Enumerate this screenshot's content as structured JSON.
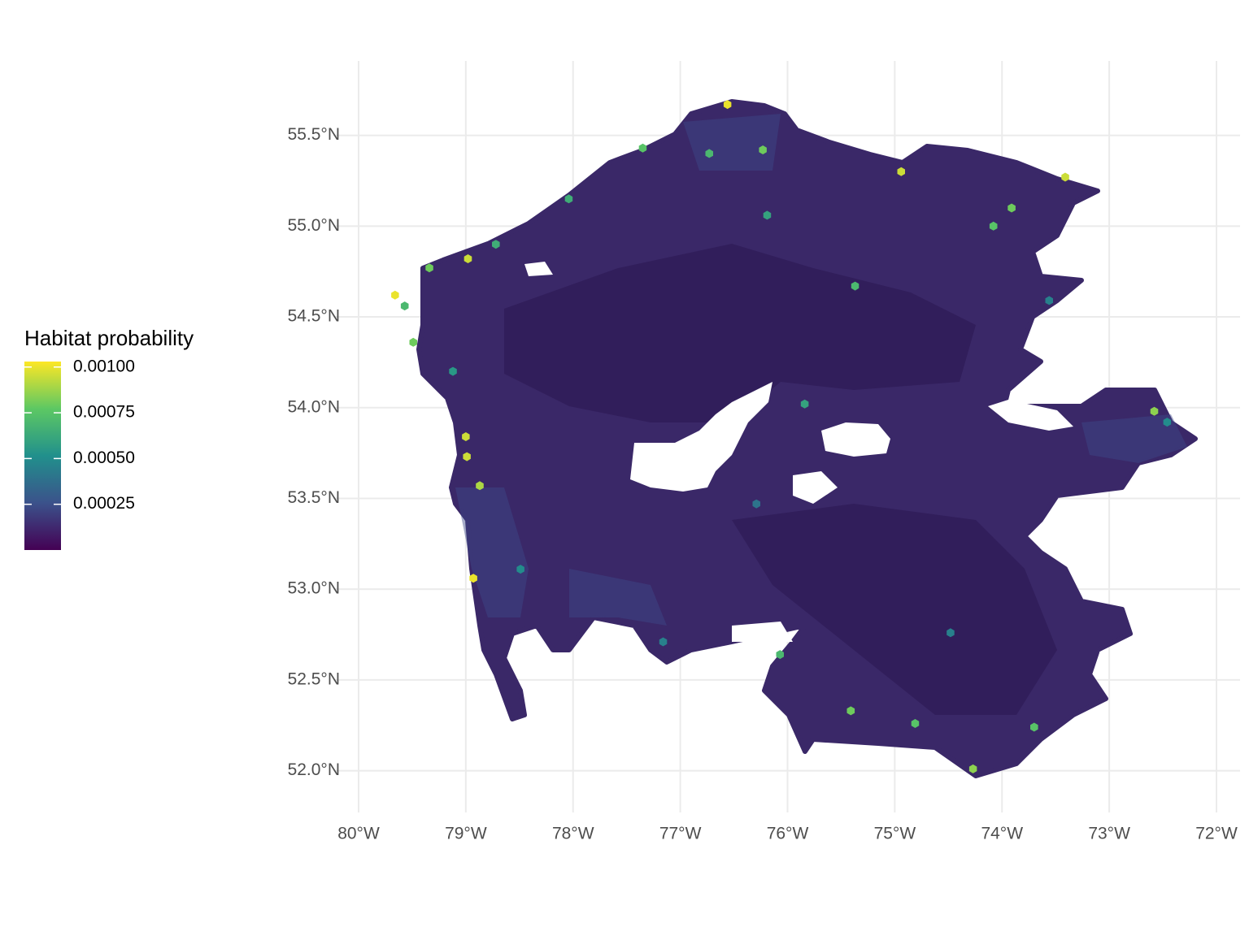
{
  "chart_data": {
    "type": "hexmap",
    "xlim": [
      -80.235,
      -71.78
    ],
    "ylim": [
      51.77,
      55.91
    ],
    "xticks": [
      {
        "value": -80,
        "label": "80°W"
      },
      {
        "value": -79,
        "label": "79°W"
      },
      {
        "value": -78,
        "label": "78°W"
      },
      {
        "value": -77,
        "label": "77°W"
      },
      {
        "value": -76,
        "label": "76°W"
      },
      {
        "value": -75,
        "label": "75°W"
      },
      {
        "value": -74,
        "label": "74°W"
      },
      {
        "value": -73,
        "label": "73°W"
      },
      {
        "value": -72,
        "label": "72°W"
      }
    ],
    "yticks": [
      {
        "value": 52,
        "label": "52.0°N"
      },
      {
        "value": 52.5,
        "label": "52.5°N"
      },
      {
        "value": 53,
        "label": "53.0°N"
      },
      {
        "value": 53.5,
        "label": "53.5°N"
      },
      {
        "value": 54,
        "label": "54.0°N"
      },
      {
        "value": 54.5,
        "label": "54.5°N"
      },
      {
        "value": 55,
        "label": "55.0°N"
      },
      {
        "value": 55.5,
        "label": "55.5°N"
      }
    ],
    "grid": true,
    "legend": {
      "title": "Habitat probability",
      "position": "left",
      "limits": [
        0,
        0.00103
      ],
      "ticks": [
        {
          "value": 0.00025,
          "label": "0.00025"
        },
        {
          "value": 0.0005,
          "label": "0.00050"
        },
        {
          "value": 0.00075,
          "label": "0.00075"
        },
        {
          "value": 0.001,
          "label": "0.00100"
        }
      ],
      "palette": [
        "#440154",
        "#3b528b",
        "#21908c",
        "#5dc863",
        "#fde725"
      ]
    },
    "cells": {
      "lon": [
        -79.66,
        -78.98,
        -76.56,
        -74.94,
        -73.41,
        -79.0,
        -78.99,
        -78.87,
        -78.93,
        -74.27,
        -72.58,
        -79.49,
        -79.34,
        -79.57,
        -75.41,
        -74.08,
        -77.35,
        -73.91,
        -75.84,
        -75.37,
        -76.73,
        -76.23,
        -76.19,
        -78.72,
        -78.04,
        -73.7,
        -76.07,
        -74.81,
        -79.12,
        -73.56,
        -72.46,
        -77.16,
        -78.49,
        -76.29,
        -74.48
      ],
      "lat": [
        54.62,
        54.82,
        55.67,
        55.3,
        55.27,
        53.84,
        53.73,
        53.57,
        53.06,
        52.01,
        53.98,
        54.36,
        54.77,
        54.56,
        52.33,
        55.0,
        55.43,
        55.1,
        54.02,
        54.67,
        55.4,
        55.42,
        55.06,
        54.9,
        55.15,
        52.24,
        52.64,
        52.26,
        54.2,
        54.59,
        53.92,
        52.71,
        53.11,
        53.47,
        52.76
      ],
      "values": [
        0.001,
        0.00095,
        0.001,
        0.00095,
        0.00095,
        0.00095,
        0.00095,
        0.0009,
        0.001,
        0.00085,
        0.00085,
        0.0008,
        0.0008,
        0.0007,
        0.0008,
        0.00075,
        0.00075,
        0.0008,
        0.0006,
        0.0007,
        0.0007,
        0.0008,
        0.0006,
        0.00065,
        0.00065,
        0.00075,
        0.0007,
        0.00075,
        0.00055,
        0.00045,
        0.0005,
        0.00045,
        0.0005,
        0.0004,
        0.00045
      ]
    }
  }
}
